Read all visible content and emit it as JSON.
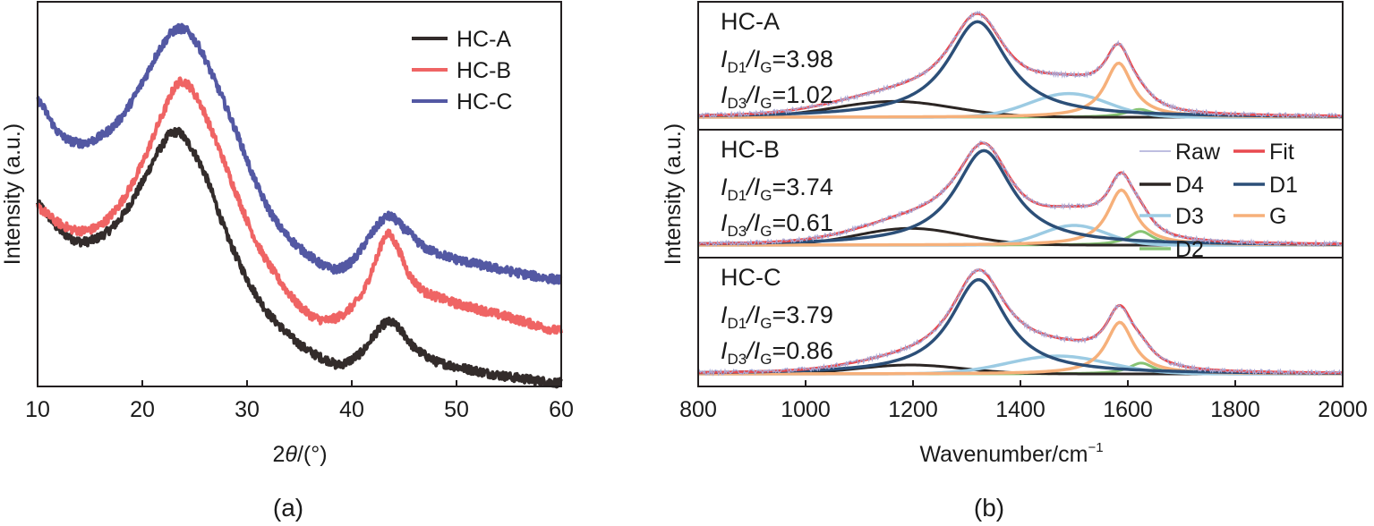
{
  "chart_data": [
    {
      "id": "a",
      "type": "line",
      "panel_label": "(a)",
      "title": "",
      "xlabel_prefix": "2",
      "xlabel_theta": "θ",
      "xlabel_suffix": "/(°)",
      "ylabel": "Intensity (a.u.)",
      "xlim": [
        10,
        60
      ],
      "ylim": [
        0,
        100
      ],
      "xticks": [
        10,
        20,
        30,
        40,
        50,
        60
      ],
      "yticks_shown": false,
      "grid": false,
      "legend_position": "top-right",
      "series": [
        {
          "name": "HC-A",
          "color": "#332c2b",
          "x": [
            10,
            12,
            14,
            16,
            18,
            20,
            22,
            23,
            24,
            26,
            28,
            30,
            32,
            35,
            38,
            39,
            41,
            42.5,
            43.5,
            44.5,
            46,
            48,
            52,
            55,
            60
          ],
          "y": [
            47.4,
            41,
            37.7,
            39,
            44,
            53,
            63,
            66,
            64.5,
            55,
            40,
            28,
            19,
            11,
            6.5,
            5.8,
            9,
            14.5,
            16.7,
            15,
            10,
            6.5,
            4,
            2.5,
            0.9
          ]
        },
        {
          "name": "HC-B",
          "color": "#ef6464",
          "x": [
            10,
            12,
            14,
            16,
            18,
            20,
            22,
            23.5,
            25,
            27,
            29,
            31,
            33,
            35,
            37,
            39,
            41,
            42.5,
            43.3,
            44.2,
            45.5,
            47,
            50,
            55,
            60
          ],
          "y": [
            46.5,
            42.5,
            40.5,
            42,
            48,
            58,
            71,
            79,
            76,
            64,
            50,
            37,
            28,
            21,
            17.4,
            18.5,
            24,
            34,
            39.5,
            37,
            29,
            24.5,
            21.5,
            18,
            14.4
          ]
        },
        {
          "name": "HC-C",
          "color": "#5358a3",
          "x": [
            10,
            12,
            14,
            16,
            18,
            20,
            22,
            23.5,
            25,
            27,
            29,
            31,
            33,
            35,
            38,
            40,
            42,
            43.5,
            45,
            47,
            50,
            55,
            60
          ],
          "y": [
            74.4,
            66,
            63.3,
            65,
            70,
            79,
            89,
            93,
            90,
            79,
            66,
            52,
            42,
            36,
            30.7,
            32.5,
            40,
            44.2,
            41,
            36,
            33,
            30,
            27.7
          ]
        }
      ]
    },
    {
      "id": "b",
      "type": "line",
      "panel_label": "(b)",
      "xlabel": "Wavenumber/cm",
      "xlabel_sup": "−1",
      "ylabel": "Intensity (a.u.)",
      "xlim": [
        800,
        2000
      ],
      "xticks": [
        800,
        1000,
        1200,
        1400,
        1600,
        1800,
        2000
      ],
      "grid": false,
      "legend_position": "middle-panel-right",
      "legend": [
        {
          "name": "Raw",
          "color": "#a9a9d6"
        },
        {
          "name": "Fit",
          "color": "#e8494f"
        },
        {
          "name": "D4",
          "color": "#2b2523"
        },
        {
          "name": "D1",
          "color": "#2c4f78"
        },
        {
          "name": "D3",
          "color": "#9ccbe3"
        },
        {
          "name": "G",
          "color": "#f6b07a"
        },
        {
          "name": "D2",
          "color": "#86c373"
        }
      ],
      "ylim": [
        0,
        1.1
      ],
      "panels": [
        {
          "sample": "HC-A",
          "ratio_d1_g": "3.98",
          "ratio_d3_g": "1.02",
          "components": [
            {
              "name": "D4",
              "center": 1165,
              "height": 0.16,
              "fwhm": 260
            },
            {
              "name": "D1",
              "center": 1320,
              "height": 0.97,
              "fwhm": 135
            },
            {
              "name": "D3",
              "center": 1490,
              "height": 0.24,
              "fwhm": 170
            },
            {
              "name": "G",
              "center": 1583,
              "height": 0.55,
              "fwhm": 62
            },
            {
              "name": "D2",
              "center": 1622,
              "height": 0.08,
              "fwhm": 60
            }
          ]
        },
        {
          "sample": "HC-B",
          "ratio_d1_g": "3.74",
          "ratio_d3_g": "0.61",
          "components": [
            {
              "name": "D4",
              "center": 1195,
              "height": 0.17,
              "fwhm": 230
            },
            {
              "name": "D1",
              "center": 1332,
              "height": 0.96,
              "fwhm": 130
            },
            {
              "name": "D3",
              "center": 1500,
              "height": 0.2,
              "fwhm": 140
            },
            {
              "name": "G",
              "center": 1588,
              "height": 0.56,
              "fwhm": 62
            },
            {
              "name": "D2",
              "center": 1624,
              "height": 0.14,
              "fwhm": 55
            }
          ]
        },
        {
          "sample": "HC-C",
          "ratio_d1_g": "3.79",
          "ratio_d3_g": "0.86",
          "components": [
            {
              "name": "D4",
              "center": 1195,
              "height": 0.09,
              "fwhm": 230
            },
            {
              "name": "D1",
              "center": 1322,
              "height": 0.95,
              "fwhm": 125
            },
            {
              "name": "D3",
              "center": 1470,
              "height": 0.18,
              "fwhm": 220
            },
            {
              "name": "G",
              "center": 1585,
              "height": 0.52,
              "fwhm": 62
            },
            {
              "name": "D2",
              "center": 1625,
              "height": 0.11,
              "fwhm": 55
            }
          ]
        }
      ]
    }
  ],
  "labels": {
    "ratio_prefix_1_main": "I",
    "ratio_prefix_1_sub": "D1",
    "ratio_slash": "/",
    "ratio_g_main": "I",
    "ratio_g_sub": "G",
    "ratio_prefix_3_sub": "D3",
    "equals": "="
  }
}
